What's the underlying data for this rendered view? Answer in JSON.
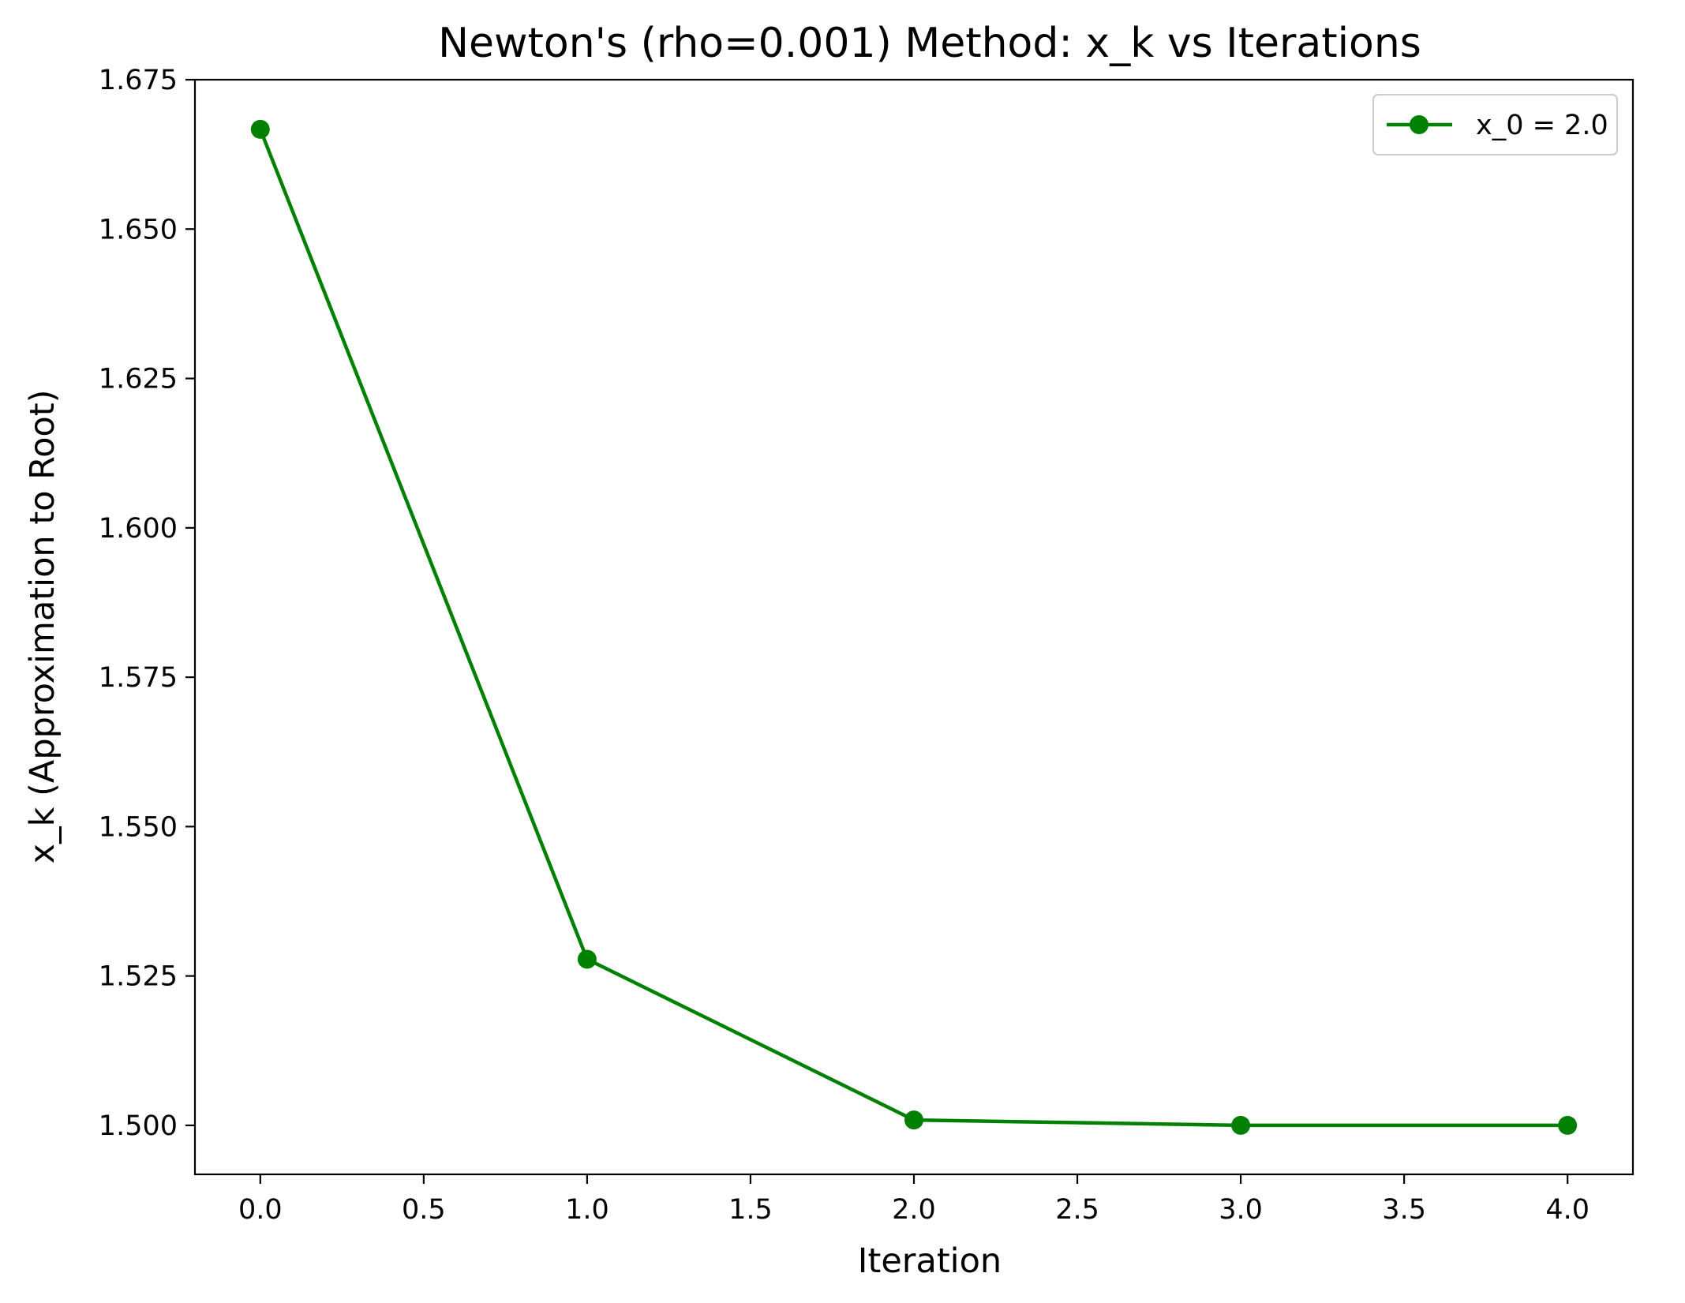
{
  "chart_data": {
    "type": "line",
    "title": "Newton's (rho=0.001) Method: x_k vs Iterations",
    "xlabel": "Iteration",
    "ylabel": "x_k (Approximation to Root)",
    "xlim": [
      -0.2,
      4.2
    ],
    "ylim": [
      1.4918,
      1.675
    ],
    "xticks": [
      "0.0",
      "0.5",
      "1.0",
      "1.5",
      "2.0",
      "2.5",
      "3.0",
      "3.5",
      "4.0"
    ],
    "yticks": [
      "1.500",
      "1.525",
      "1.550",
      "1.575",
      "1.600",
      "1.625",
      "1.650",
      "1.675"
    ],
    "grid": false,
    "legend_position": "top-right",
    "series": [
      {
        "name": "x_0 = 2.0",
        "color": "#008000",
        "marker": "circle",
        "x": [
          0,
          1,
          2,
          3,
          4
        ],
        "y": [
          1.6667,
          1.5278,
          1.5009,
          1.5,
          1.5
        ]
      }
    ]
  }
}
